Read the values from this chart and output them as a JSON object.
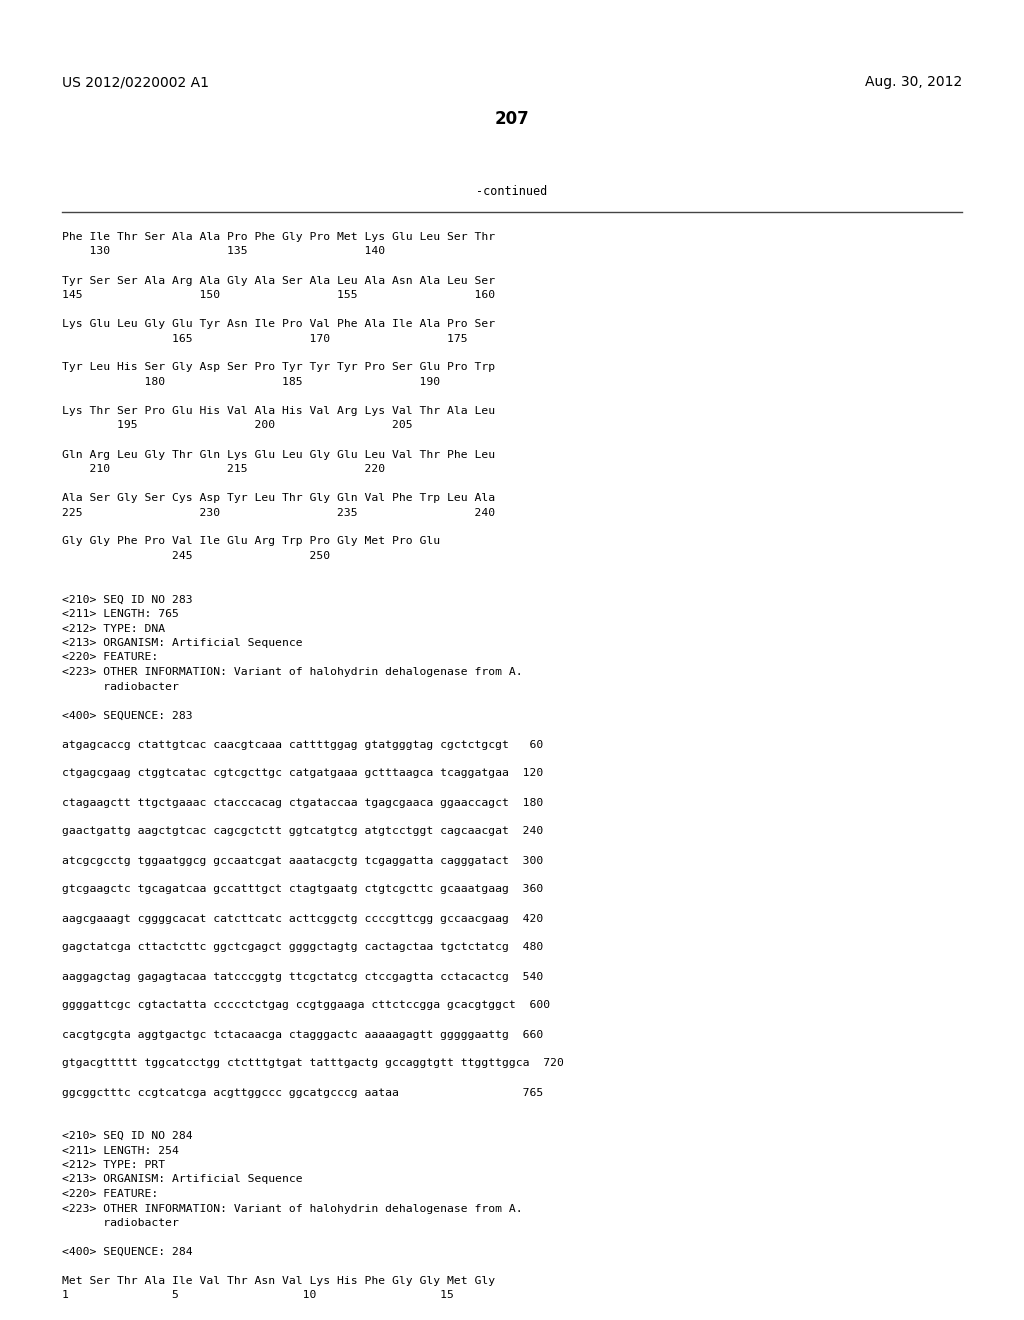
{
  "header_left": "US 2012/0220002 A1",
  "header_right": "Aug. 30, 2012",
  "page_number": "207",
  "continued_label": "-continued",
  "bg_color": "#ffffff",
  "text_color": "#000000",
  "font_size": 8.2,
  "lines": [
    "Phe Ile Thr Ser Ala Ala Pro Phe Gly Pro Met Lys Glu Leu Ser Thr",
    "    130                 135                 140",
    "",
    "Tyr Ser Ser Ala Arg Ala Gly Ala Ser Ala Leu Ala Asn Ala Leu Ser",
    "145                 150                 155                 160",
    "",
    "Lys Glu Leu Gly Glu Tyr Asn Ile Pro Val Phe Ala Ile Ala Pro Ser",
    "                165                 170                 175",
    "",
    "Tyr Leu His Ser Gly Asp Ser Pro Tyr Tyr Tyr Pro Ser Glu Pro Trp",
    "            180                 185                 190",
    "",
    "Lys Thr Ser Pro Glu His Val Ala His Val Arg Lys Val Thr Ala Leu",
    "        195                 200                 205",
    "",
    "Gln Arg Leu Gly Thr Gln Lys Glu Leu Gly Glu Leu Val Thr Phe Leu",
    "    210                 215                 220",
    "",
    "Ala Ser Gly Ser Cys Asp Tyr Leu Thr Gly Gln Val Phe Trp Leu Ala",
    "225                 230                 235                 240",
    "",
    "Gly Gly Phe Pro Val Ile Glu Arg Trp Pro Gly Met Pro Glu",
    "                245                 250",
    "",
    "",
    "<210> SEQ ID NO 283",
    "<211> LENGTH: 765",
    "<212> TYPE: DNA",
    "<213> ORGANISM: Artificial Sequence",
    "<220> FEATURE:",
    "<223> OTHER INFORMATION: Variant of halohydrin dehalogenase from A.",
    "      radiobacter",
    "",
    "<400> SEQUENCE: 283",
    "",
    "atgagcaccg ctattgtcac caacgtcaaa cattttggag gtatgggtag cgctctgcgt   60",
    "",
    "ctgagcgaag ctggtcatac cgtcgcttgc catgatgaaa gctttaagca tcaggatgaa  120",
    "",
    "ctagaagctt ttgctgaaac ctacccacag ctgataccaa tgagcgaaca ggaaccagct  180",
    "",
    "gaactgattg aagctgtcac cagcgctctt ggtcatgtcg atgtcctggt cagcaacgat  240",
    "",
    "atcgcgcctg tggaatggcg gccaatcgat aaatacgctg tcgaggatta cagggatact  300",
    "",
    "gtcgaagctc tgcagatcaa gccatttgct ctagtgaatg ctgtcgcttc gcaaatgaag  360",
    "",
    "aagcgaaagt cggggcacat catcttcatc acttcggctg ccccgttcgg gccaacgaag  420",
    "",
    "gagctatcga cttactcttc ggctcgagct ggggctagtg cactagctaa tgctctatcg  480",
    "",
    "aaggagctag gagagtacaa tatcccggtg ttcgctatcg ctccgagtta cctacactcg  540",
    "",
    "ggggattcgc cgtactatta ccccctctgag ccgtggaaga cttctccgga gcacgtggct  600",
    "",
    "cacgtgcgta aggtgactgc tctacaacga ctagggactc aaaaagagtt gggggaattg  660",
    "",
    "gtgacgttttt tggcatcctgg ctctttgtgat tatttgactg gccaggtgtt ttggttggca  720",
    "",
    "ggcggctttc ccgtcatcga acgttggccc ggcatgcccg aataa                  765",
    "",
    "",
    "<210> SEQ ID NO 284",
    "<211> LENGTH: 254",
    "<212> TYPE: PRT",
    "<213> ORGANISM: Artificial Sequence",
    "<220> FEATURE:",
    "<223> OTHER INFORMATION: Variant of halohydrin dehalogenase from A.",
    "      radiobacter",
    "",
    "<400> SEQUENCE: 284",
    "",
    "Met Ser Thr Ala Ile Val Thr Asn Val Lys His Phe Gly Gly Met Gly",
    "1               5                  10                  15"
  ]
}
